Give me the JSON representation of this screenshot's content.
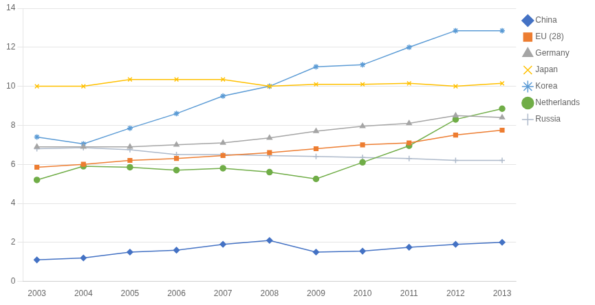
{
  "chart_data": {
    "type": "line",
    "x": [
      2003,
      2004,
      2005,
      2006,
      2007,
      2008,
      2009,
      2010,
      2011,
      2012,
      2013
    ],
    "series": [
      {
        "name": "China",
        "color": "#4472c4",
        "marker": "diamond",
        "values": [
          1.1,
          1.2,
          1.5,
          1.6,
          1.9,
          2.1,
          1.5,
          1.55,
          1.75,
          1.9,
          2.0
        ]
      },
      {
        "name": "EU (28)",
        "color": "#ed7d31",
        "marker": "square",
        "values": [
          5.85,
          6.0,
          6.2,
          6.3,
          6.45,
          6.6,
          6.8,
          7.0,
          7.1,
          7.5,
          7.75
        ]
      },
      {
        "name": "Germany",
        "color": "#a5a5a5",
        "marker": "triangle",
        "values": [
          6.9,
          6.9,
          6.9,
          7.0,
          7.1,
          7.35,
          7.7,
          7.95,
          8.1,
          8.5,
          8.4
        ]
      },
      {
        "name": "Japan",
        "color": "#ffc000",
        "marker": "x",
        "values": [
          10.0,
          10.0,
          10.35,
          10.35,
          10.35,
          10.0,
          10.1,
          10.1,
          10.15,
          10.0,
          10.15
        ]
      },
      {
        "name": "Korea",
        "color": "#5b9bd5",
        "marker": "star",
        "values": [
          7.4,
          7.05,
          7.85,
          8.6,
          9.5,
          10.0,
          11.0,
          11.1,
          12.0,
          12.85,
          12.85
        ]
      },
      {
        "name": "Netherlands",
        "color": "#70ad47",
        "marker": "circle",
        "values": [
          5.2,
          5.9,
          5.85,
          5.7,
          5.8,
          5.6,
          5.25,
          6.1,
          6.95,
          8.3,
          8.85
        ]
      },
      {
        "name": "Russia",
        "color": "#adb9ca",
        "marker": "plus",
        "values": [
          6.8,
          6.85,
          6.75,
          6.5,
          6.5,
          6.45,
          6.4,
          6.35,
          6.3,
          6.2,
          6.2
        ]
      }
    ],
    "xlim": [
      2002.7,
      2013.3
    ],
    "xticks": [
      2003,
      2004,
      2005,
      2006,
      2007,
      2008,
      2009,
      2010,
      2011,
      2012,
      2013
    ],
    "ylim": [
      0,
      14
    ],
    "yticks": [
      0,
      2,
      4,
      6,
      8,
      10,
      12,
      14
    ],
    "grid": "y",
    "legend": "right"
  }
}
